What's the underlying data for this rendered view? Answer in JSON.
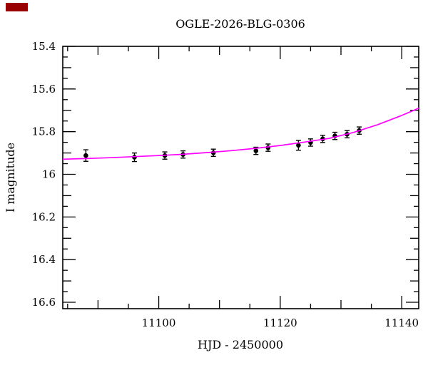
{
  "decoration": {
    "corner_mark_color": "#990000"
  },
  "chart_data": {
    "type": "scatter",
    "title": "OGLE-2026-BLG-0306",
    "xlabel": "HJD - 2450000",
    "ylabel": "I magnitude",
    "x_range": [
      11084.2,
      11142.8
    ],
    "y_range_mag": [
      15.4,
      16.63
    ],
    "y_axis_inverted": true,
    "x_major_tick_labels": [
      "11100",
      "11120",
      "11140"
    ],
    "x_major_ticks": [
      11100,
      11120,
      11140
    ],
    "x_minor_step": 5,
    "y_major_tick_labels": [
      "15.4",
      "15.6",
      "15.8",
      "16",
      "16.2",
      "16.4",
      "16.6"
    ],
    "y_major_ticks": [
      15.4,
      15.6,
      15.8,
      16.0,
      16.2,
      16.4,
      16.6
    ],
    "y_minor_step": 0.05,
    "grid": false,
    "legend": null,
    "colors": {
      "data_points": "#000000",
      "model_curve": "#ff00ff",
      "frame": "#000000"
    },
    "series": [
      {
        "name": "I-band photometry",
        "type": "scatter",
        "color": "#000000",
        "x": [
          11088,
          11096,
          11101,
          11104,
          11109,
          11116,
          11118,
          11123,
          11125,
          11127,
          11129,
          11131,
          11133
        ],
        "y": [
          15.912,
          15.92,
          15.912,
          15.907,
          15.899,
          15.89,
          15.875,
          15.864,
          15.851,
          15.834,
          15.82,
          15.812,
          15.795
        ],
        "yerr": [
          0.027,
          0.02,
          0.017,
          0.017,
          0.017,
          0.017,
          0.017,
          0.023,
          0.017,
          0.017,
          0.017,
          0.017,
          0.017
        ]
      },
      {
        "name": "microlensing model",
        "type": "line",
        "color": "#ff00ff",
        "x": [
          11084.2,
          11088,
          11092,
          11096,
          11100,
          11104,
          11108,
          11112,
          11116,
          11120,
          11124,
          11128,
          11132,
          11136,
          11140,
          11142.8
        ],
        "y": [
          15.929,
          15.926,
          15.922,
          15.917,
          15.912,
          15.906,
          15.898,
          15.889,
          15.878,
          15.865,
          15.849,
          15.832,
          15.804,
          15.768,
          15.724,
          15.69
        ]
      }
    ]
  }
}
